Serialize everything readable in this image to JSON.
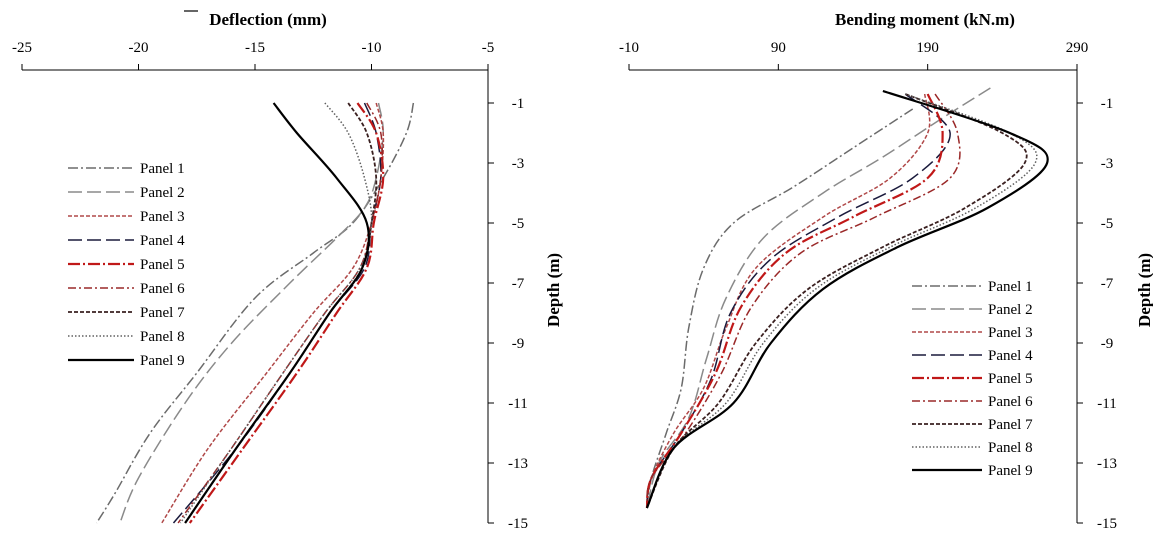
{
  "chart_data": [
    {
      "type": "line",
      "xlabel": "Deflection (mm)",
      "ylabel": "Depth (m)",
      "xlim": [
        -25,
        -5
      ],
      "ylim": [
        -15,
        0
      ],
      "x_axis_position": "top",
      "y_axis_position": "right",
      "x_ticks": [
        "-25",
        "-20",
        "-15",
        "-10",
        "-5"
      ],
      "y_ticks": [
        "-1",
        "-3",
        "-5",
        "-7",
        "-9",
        "-11",
        "-13",
        "-15"
      ],
      "legend_position": "left-middle",
      "grid": false,
      "series": [
        {
          "name": "Panel 1",
          "color": "#6b6b6b",
          "dash": "10,3,2,3",
          "width": 1.5,
          "points": [
            [
              -8.2,
              -1
            ],
            [
              -8.5,
              -2
            ],
            [
              -9.5,
              -3.5
            ],
            [
              -10.8,
              -5
            ],
            [
              -12.5,
              -6
            ],
            [
              -15,
              -7.5
            ],
            [
              -17.5,
              -10
            ],
            [
              -19.5,
              -12
            ],
            [
              -21,
              -14
            ],
            [
              -21.8,
              -15
            ]
          ]
        },
        {
          "name": "Panel 2",
          "color": "#8a8a8a",
          "dash": "14,5",
          "width": 1.5,
          "points": [
            [
              -9.7,
              -1
            ],
            [
              -9.5,
              -2
            ],
            [
              -9.8,
              -3.5
            ],
            [
              -10.3,
              -4.5
            ],
            [
              -11.5,
              -5.5
            ],
            [
              -13.5,
              -7
            ],
            [
              -16,
              -9
            ],
            [
              -18,
              -11
            ],
            [
              -20,
              -13.5
            ],
            [
              -20.8,
              -15
            ]
          ]
        },
        {
          "name": "Panel 3",
          "color": "#b04848",
          "dash": "4,2",
          "width": 1.5,
          "points": [
            [
              -9.8,
              -1
            ],
            [
              -9.5,
              -2
            ],
            [
              -9.6,
              -3.5
            ],
            [
              -10,
              -5
            ],
            [
              -10.8,
              -6.5
            ],
            [
              -12.5,
              -8
            ],
            [
              -14.5,
              -10
            ],
            [
              -17,
              -12.5
            ],
            [
              -19,
              -15
            ]
          ]
        },
        {
          "name": "Panel 4",
          "color": "#1a1a3c",
          "dash": "14,5",
          "width": 1.5,
          "points": [
            [
              -10.3,
              -1
            ],
            [
              -9.8,
              -2
            ],
            [
              -9.6,
              -3.5
            ],
            [
              -10,
              -5
            ],
            [
              -10.3,
              -6.5
            ],
            [
              -11.8,
              -8
            ],
            [
              -13.5,
              -10
            ],
            [
              -15.8,
              -12.5
            ],
            [
              -18.5,
              -15
            ]
          ]
        },
        {
          "name": "Panel 5",
          "color": "#c01818",
          "dash": "12,3,2,3",
          "width": 2.2,
          "points": [
            [
              -10.6,
              -1
            ],
            [
              -9.8,
              -2
            ],
            [
              -9.5,
              -3.5
            ],
            [
              -9.9,
              -5
            ],
            [
              -10.2,
              -6.5
            ],
            [
              -11.5,
              -8
            ],
            [
              -13.2,
              -10
            ],
            [
              -15.5,
              -12.5
            ],
            [
              -17.8,
              -15
            ]
          ]
        },
        {
          "name": "Panel 6",
          "color": "#9a2828",
          "dash": "8,3,2,3",
          "width": 1.5,
          "points": [
            [
              -10.2,
              -1
            ],
            [
              -9.6,
              -2
            ],
            [
              -9.6,
              -3.5
            ],
            [
              -10,
              -5
            ],
            [
              -10.5,
              -6.5
            ],
            [
              -12,
              -8
            ],
            [
              -13.8,
              -10
            ],
            [
              -16,
              -12.5
            ],
            [
              -18.3,
              -15
            ]
          ]
        },
        {
          "name": "Panel 7",
          "color": "#3a2020",
          "dash": "4,2",
          "width": 1.8,
          "points": [
            [
              -11,
              -1
            ],
            [
              -10.2,
              -2
            ],
            [
              -9.8,
              -3.5
            ],
            [
              -10,
              -5
            ],
            [
              -10.4,
              -6.5
            ],
            [
              -11.8,
              -8
            ],
            [
              -13.5,
              -10
            ],
            [
              -15.8,
              -12.5
            ],
            [
              -18,
              -15
            ]
          ]
        },
        {
          "name": "Panel 8",
          "color": "#606060",
          "dash": "1.5,2",
          "width": 1.5,
          "points": [
            [
              -12,
              -1
            ],
            [
              -11,
              -2
            ],
            [
              -10.3,
              -3.5
            ],
            [
              -10,
              -5
            ],
            [
              -10.5,
              -6.5
            ],
            [
              -12,
              -8
            ],
            [
              -13.8,
              -10
            ],
            [
              -16,
              -12.5
            ],
            [
              -18.2,
              -15
            ]
          ]
        },
        {
          "name": "Panel 9",
          "color": "#000000",
          "dash": "",
          "width": 2.2,
          "points": [
            [
              -14.2,
              -1
            ],
            [
              -13.2,
              -2
            ],
            [
              -11.5,
              -3.5
            ],
            [
              -10.2,
              -5
            ],
            [
              -10.4,
              -6.5
            ],
            [
              -11.8,
              -8
            ],
            [
              -13.5,
              -10
            ],
            [
              -15.8,
              -12.5
            ],
            [
              -18,
              -15
            ]
          ]
        }
      ]
    },
    {
      "type": "line",
      "xlabel": "Bending moment (kN.m)",
      "ylabel": "Depth (m)",
      "xlim": [
        -10,
        290
      ],
      "ylim": [
        -15,
        0
      ],
      "x_axis_position": "top",
      "y_axis_position": "right",
      "x_ticks": [
        "-10",
        "90",
        "190",
        "290"
      ],
      "y_ticks": [
        "-1",
        "-3",
        "-5",
        "-7",
        "-9",
        "-11",
        "-13",
        "-15"
      ],
      "legend_position": "bottom-right",
      "grid": false,
      "series": [
        {
          "name": "Panel 1",
          "color": "#6b6b6b",
          "dash": "10,3,2,3",
          "width": 1.5,
          "points": [
            [
              180,
              -1.2
            ],
            [
              140,
              -2.5
            ],
            [
              100,
              -3.8
            ],
            [
              60,
              -5
            ],
            [
              40,
              -6.5
            ],
            [
              30,
              -8.5
            ],
            [
              25,
              -10.5
            ],
            [
              15,
              -12
            ],
            [
              5,
              -13.5
            ],
            [
              2,
              -14.5
            ]
          ]
        },
        {
          "name": "Panel 2",
          "color": "#8a8a8a",
          "dash": "14,5",
          "width": 1.5,
          "points": [
            [
              232,
              -0.5
            ],
            [
              200,
              -1.5
            ],
            [
              160,
              -2.8
            ],
            [
              120,
              -4
            ],
            [
              80,
              -5.5
            ],
            [
              55,
              -7.5
            ],
            [
              42,
              -9.5
            ],
            [
              30,
              -11.5
            ],
            [
              10,
              -13
            ],
            [
              2,
              -14.5
            ]
          ]
        },
        {
          "name": "Panel 3",
          "color": "#b04848",
          "dash": "4,2",
          "width": 1.5,
          "points": [
            [
              188,
              -0.7
            ],
            [
              190,
              -2
            ],
            [
              165,
              -3.5
            ],
            [
              120,
              -4.8
            ],
            [
              75,
              -6.5
            ],
            [
              55,
              -8.5
            ],
            [
              40,
              -10.5
            ],
            [
              20,
              -12
            ],
            [
              5,
              -13.5
            ],
            [
              2,
              -14.5
            ]
          ]
        },
        {
          "name": "Panel 4",
          "color": "#1a1a3c",
          "dash": "14,5",
          "width": 1.5,
          "points": [
            [
              175,
              -0.7
            ],
            [
              205,
              -2
            ],
            [
              180,
              -3.5
            ],
            [
              130,
              -4.8
            ],
            [
              85,
              -6.2
            ],
            [
              58,
              -8
            ],
            [
              45,
              -10.2
            ],
            [
              25,
              -12
            ],
            [
              5,
              -13.5
            ],
            [
              2,
              -14.5
            ]
          ]
        },
        {
          "name": "Panel 5",
          "color": "#c01818",
          "dash": "12,3,2,3",
          "width": 2.2,
          "points": [
            [
              190,
              -0.7
            ],
            [
              200,
              -2
            ],
            [
              190,
              -3.5
            ],
            [
              140,
              -4.8
            ],
            [
              95,
              -6
            ],
            [
              65,
              -7.8
            ],
            [
              48,
              -10
            ],
            [
              25,
              -12
            ],
            [
              5,
              -13.5
            ],
            [
              2,
              -14.5
            ]
          ]
        },
        {
          "name": "Panel 6",
          "color": "#9a2828",
          "dash": "8,3,2,3",
          "width": 1.5,
          "points": [
            [
              195,
              -0.7
            ],
            [
              210,
              -2
            ],
            [
              205,
              -3.5
            ],
            [
              155,
              -4.8
            ],
            [
              105,
              -6
            ],
            [
              72,
              -7.8
            ],
            [
              52,
              -10
            ],
            [
              28,
              -12
            ],
            [
              5,
              -13.5
            ],
            [
              2,
              -14.5
            ]
          ]
        },
        {
          "name": "Panel 7",
          "color": "#3a2020",
          "dash": "4,2",
          "width": 1.8,
          "points": [
            [
              175,
              -0.7
            ],
            [
              240,
              -2
            ],
            [
              255,
              -3
            ],
            [
              215,
              -4.5
            ],
            [
              160,
              -5.8
            ],
            [
              110,
              -7.2
            ],
            [
              75,
              -9
            ],
            [
              50,
              -11
            ],
            [
              20,
              -12.5
            ],
            [
              2,
              -14.5
            ]
          ]
        },
        {
          "name": "Panel 8",
          "color": "#606060",
          "dash": "1.5,2",
          "width": 1.5,
          "points": [
            [
              175,
              -0.7
            ],
            [
              245,
              -2
            ],
            [
              262,
              -3
            ],
            [
              222,
              -4.5
            ],
            [
              165,
              -5.8
            ],
            [
              115,
              -7.2
            ],
            [
              80,
              -9
            ],
            [
              55,
              -11
            ],
            [
              20,
              -12.5
            ],
            [
              2,
              -14.5
            ]
          ]
        },
        {
          "name": "Panel 9",
          "color": "#000000",
          "dash": "",
          "width": 2.2,
          "points": [
            [
              160,
              -0.6
            ],
            [
              245,
              -2
            ],
            [
              270,
              -3
            ],
            [
              230,
              -4.5
            ],
            [
              170,
              -5.8
            ],
            [
              120,
              -7.2
            ],
            [
              85,
              -9
            ],
            [
              60,
              -11
            ],
            [
              20,
              -12.5
            ],
            [
              2,
              -14.5
            ]
          ]
        }
      ]
    }
  ]
}
